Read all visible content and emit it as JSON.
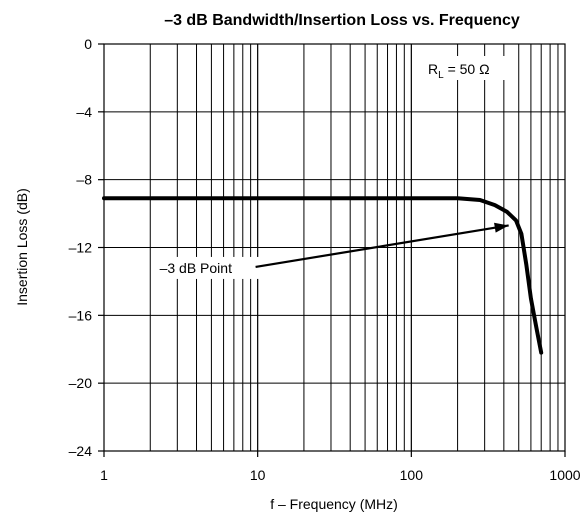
{
  "chart_data": {
    "type": "line",
    "title": "–3 dB Bandwidth/Insertion Loss vs. Frequency",
    "xlabel": "f – Frequency (MHz)",
    "ylabel": "Insertion Loss (dB)",
    "xscale": "log",
    "xlim": [
      1,
      1000
    ],
    "ylim": [
      -24,
      0
    ],
    "xticks": [
      1,
      10,
      100,
      1000
    ],
    "xtick_labels": [
      "1",
      "10",
      "100",
      "1000"
    ],
    "yticks": [
      0,
      -4,
      -8,
      -12,
      -16,
      -20,
      -24
    ],
    "ytick_labels": [
      "0",
      "–4",
      "–8",
      "–12",
      "–16",
      "–20",
      "–24"
    ],
    "grid": true,
    "series": [
      {
        "x": [
          1,
          10,
          100,
          200,
          280,
          350,
          420,
          480,
          520,
          560,
          600,
          650,
          700
        ],
        "y": [
          -9.1,
          -9.1,
          -9.1,
          -9.1,
          -9.2,
          -9.5,
          -9.9,
          -10.4,
          -11.2,
          -13.0,
          -15.0,
          -16.7,
          -18.2
        ]
      }
    ],
    "annotations": [
      {
        "text": "–3 dB Point",
        "x": 2.3,
        "y": -13.5,
        "arrow_to": [
          430,
          -10.7
        ]
      }
    ],
    "legend": {
      "text_main": "R",
      "text_sub": "L",
      "text_rest": " = 50 Ω",
      "position": "top-right"
    }
  }
}
